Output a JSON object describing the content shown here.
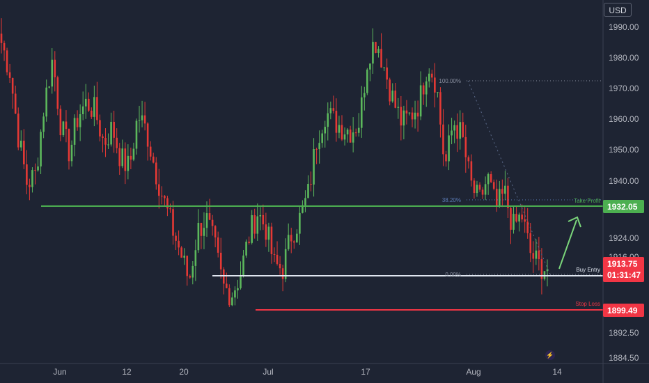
{
  "chart_data": {
    "type": "candlestick",
    "currency": "USD",
    "y_ticks": [
      "1990.00",
      "1980.00",
      "1970.00",
      "1960.00",
      "1950.00",
      "1940.00",
      "1924.00",
      "1916.00",
      "1892.50",
      "1884.50"
    ],
    "x_ticks": [
      "Jun",
      "12",
      "20",
      "Jul",
      "17",
      "Aug",
      "14"
    ],
    "ylim": [
      1884.5,
      1990
    ],
    "levels": {
      "take_profit": {
        "label": "Take Profit",
        "value": 1932.05,
        "tag": "1932.05",
        "color": "#4caf50"
      },
      "buy_entry": {
        "label": "Buy Entry",
        "value": 1913.0,
        "color": "#e0e6f0"
      },
      "stop_loss": {
        "label": "Stop Loss",
        "value": 1899.49,
        "tag": "1899.49",
        "color": "#f23645"
      }
    },
    "fib_labels": [
      "100.00%",
      "38.20%",
      "0.00%"
    ],
    "current_price": "1913.75",
    "countdown": "01:31:47",
    "candles_summary": [
      1985,
      1976,
      1955,
      1940,
      1943,
      1965,
      1980,
      1958,
      1950,
      1962,
      1966,
      1963,
      1953,
      1958,
      1948,
      1945,
      1962,
      1957,
      1945,
      1935,
      1926,
      1918,
      1909,
      1925,
      1929,
      1920,
      1907,
      1905,
      1911,
      1923,
      1931,
      1926,
      1914,
      1913,
      1924,
      1929,
      1937,
      1955,
      1963,
      1960,
      1958,
      1957,
      1960,
      1982,
      1986,
      1976,
      1966,
      1959,
      1962,
      1966,
      1979,
      1972,
      1945,
      1960,
      1955,
      1940,
      1934,
      1942,
      1932,
      1937,
      1926,
      1930,
      1918,
      1914,
      1913
    ]
  }
}
